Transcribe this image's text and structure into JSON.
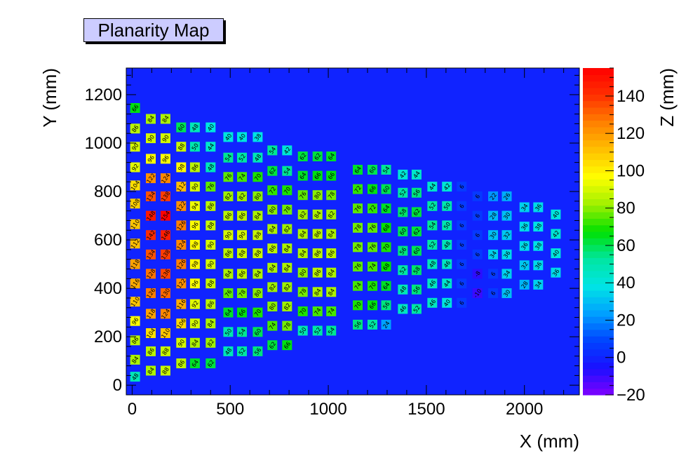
{
  "title": "Planarity Map",
  "chart_data": {
    "type": "heatmap",
    "title": "Planarity Map",
    "xlabel": "X (mm)",
    "ylabel": "Y (mm)",
    "zlabel": "Z (mm)",
    "xlim": [
      -30,
      2280
    ],
    "ylim": [
      -40,
      1310
    ],
    "zlim": [
      -20,
      155
    ],
    "x_ticks": [
      0,
      500,
      1000,
      1500,
      2000
    ],
    "y_ticks": [
      0,
      200,
      400,
      600,
      800,
      1000,
      1200
    ],
    "z_ticks": [
      -20,
      0,
      20,
      40,
      60,
      80,
      100,
      120,
      140
    ],
    "background_z": 0,
    "colormap": [
      "#8000ff",
      "#1a10ff",
      "#0044ff",
      "#00a0ff",
      "#00e5e5",
      "#00e6a0",
      "#00e000",
      "#a0f000",
      "#ffff00",
      "#ffc000",
      "#ff8000",
      "#ff3000",
      "#ff0000"
    ],
    "columns": [
      {
        "x": 15,
        "y": [
          35,
          105,
          185,
          265,
          345,
          420,
          500,
          585,
          665,
          750,
          825,
          900,
          985,
          1060,
          1145
        ],
        "z": [
          48,
          84,
          86,
          96,
          110,
          116,
          118,
          112,
          110,
          108,
          104,
          92,
          90,
          86,
          66
        ]
      },
      {
        "x": 95,
        "y": [
          60,
          140,
          215,
          295,
          380,
          460,
          540,
          620,
          700,
          780,
          855,
          935,
          1020,
          1100
        ],
        "z": [
          84,
          86,
          104,
          118,
          126,
          128,
          134,
          142,
          148,
          134,
          122,
          96,
          90,
          84
        ]
      },
      {
        "x": 170,
        "y": [
          60,
          140,
          215,
          295,
          380,
          460,
          540,
          620,
          700,
          780,
          855,
          935,
          1020,
          1100
        ],
        "z": [
          88,
          88,
          110,
          124,
          130,
          136,
          138,
          146,
          154,
          138,
          124,
          96,
          90,
          84
        ]
      },
      {
        "x": 250,
        "y": [
          90,
          175,
          255,
          335,
          420,
          500,
          580,
          660,
          740,
          820,
          900,
          985,
          1065
        ],
        "z": [
          86,
          90,
          106,
          116,
          122,
          126,
          124,
          126,
          122,
          112,
          98,
          88,
          60
        ]
      },
      {
        "x": 320,
        "y": [
          90,
          175,
          255,
          335,
          420,
          500,
          580,
          660,
          740,
          820,
          900,
          985,
          1065
        ],
        "z": [
          64,
          84,
          90,
          92,
          96,
          98,
          98,
          96,
          94,
          90,
          86,
          50,
          48
        ]
      },
      {
        "x": 400,
        "y": [
          90,
          175,
          255,
          335,
          420,
          500,
          580,
          660,
          740,
          820,
          900,
          985,
          1065
        ],
        "z": [
          62,
          82,
          84,
          86,
          88,
          90,
          90,
          88,
          86,
          76,
          48,
          44,
          40
        ]
      },
      {
        "x": 490,
        "y": [
          140,
          220,
          300,
          380,
          460,
          545,
          620,
          700,
          780,
          860,
          940,
          1025
        ],
        "z": [
          48,
          50,
          64,
          76,
          84,
          86,
          90,
          86,
          82,
          76,
          54,
          40
        ]
      },
      {
        "x": 560,
        "y": [
          140,
          220,
          300,
          380,
          460,
          545,
          620,
          700,
          780,
          860,
          940,
          1025
        ],
        "z": [
          52,
          54,
          66,
          78,
          86,
          88,
          90,
          86,
          82,
          74,
          52,
          40
        ]
      },
      {
        "x": 640,
        "y": [
          140,
          220,
          300,
          380,
          460,
          545,
          620,
          700,
          780,
          860,
          940,
          1025
        ],
        "z": [
          56,
          60,
          70,
          80,
          84,
          88,
          88,
          84,
          80,
          70,
          48,
          38
        ]
      },
      {
        "x": 715,
        "y": [
          165,
          245,
          325,
          405,
          485,
          565,
          645,
          725,
          805,
          885,
          970
        ],
        "z": [
          62,
          74,
          80,
          82,
          84,
          86,
          84,
          80,
          72,
          62,
          54
        ]
      },
      {
        "x": 790,
        "y": [
          165,
          245,
          325,
          405,
          485,
          565,
          645,
          725,
          805,
          885,
          970
        ],
        "z": [
          66,
          78,
          82,
          82,
          84,
          84,
          82,
          78,
          70,
          54,
          42
        ]
      },
      {
        "x": 870,
        "y": [
          225,
          305,
          385,
          465,
          545,
          625,
          705,
          785,
          865,
          945
        ],
        "z": [
          50,
          70,
          78,
          80,
          84,
          84,
          82,
          76,
          64,
          62
        ]
      },
      {
        "x": 945,
        "y": [
          225,
          305,
          385,
          465,
          545,
          625,
          705,
          785,
          865,
          945
        ],
        "z": [
          52,
          74,
          84,
          86,
          86,
          86,
          84,
          80,
          66,
          62
        ]
      },
      {
        "x": 1015,
        "y": [
          225,
          305,
          385,
          465,
          545,
          625,
          705,
          785,
          865,
          945
        ],
        "z": [
          54,
          74,
          84,
          84,
          86,
          84,
          82,
          78,
          66,
          64
        ]
      },
      {
        "x": 1150,
        "y": [
          250,
          330,
          410,
          490,
          570,
          650,
          730,
          810,
          890
        ],
        "z": [
          56,
          70,
          74,
          76,
          78,
          78,
          76,
          72,
          64
        ]
      },
      {
        "x": 1225,
        "y": [
          250,
          330,
          410,
          490,
          570,
          650,
          730,
          810,
          890
        ],
        "z": [
          52,
          66,
          70,
          74,
          76,
          76,
          72,
          66,
          60
        ]
      },
      {
        "x": 1295,
        "y": [
          250,
          330,
          410,
          490,
          570,
          650,
          730,
          810,
          890
        ],
        "z": [
          24,
          56,
          64,
          68,
          70,
          68,
          64,
          60,
          54
        ]
      },
      {
        "x": 1380,
        "y": [
          315,
          395,
          475,
          555,
          635,
          715,
          795,
          870
        ],
        "z": [
          46,
          48,
          52,
          56,
          60,
          58,
          52,
          42
        ]
      },
      {
        "x": 1450,
        "y": [
          315,
          395,
          475,
          555,
          635,
          715,
          795,
          870
        ],
        "z": [
          52,
          56,
          58,
          60,
          62,
          62,
          56,
          44
        ]
      },
      {
        "x": 1530,
        "y": [
          340,
          420,
          500,
          580,
          660,
          740,
          820
        ],
        "z": [
          46,
          46,
          48,
          52,
          54,
          52,
          44
        ]
      },
      {
        "x": 1605,
        "y": [
          340,
          420,
          500,
          580,
          660,
          740,
          820
        ],
        "z": [
          40,
          44,
          46,
          48,
          50,
          50,
          42
        ]
      },
      {
        "x": 1680,
        "y": [
          340,
          420,
          500,
          580,
          660,
          740,
          820
        ],
        "z": [
          6,
          6,
          6,
          6,
          6,
          6,
          6
        ]
      },
      {
        "x": 1760,
        "y": [
          380,
          460,
          540,
          620,
          700,
          780
        ],
        "z": [
          -10,
          -8,
          6,
          6,
          6,
          6
        ]
      },
      {
        "x": 1840,
        "y": [
          380,
          460,
          540,
          620,
          700,
          780
        ],
        "z": [
          6,
          6,
          34,
          30,
          28,
          22
        ]
      },
      {
        "x": 1910,
        "y": [
          380,
          460,
          540,
          620,
          700,
          780
        ],
        "z": [
          30,
          34,
          36,
          32,
          30,
          26
        ]
      },
      {
        "x": 2000,
        "y": [
          415,
          495,
          575,
          655,
          735
        ],
        "z": [
          28,
          32,
          36,
          36,
          34
        ]
      },
      {
        "x": 2070,
        "y": [
          415,
          495,
          575,
          655,
          735
        ],
        "z": [
          34,
          36,
          38,
          38,
          36
        ]
      },
      {
        "x": 2160,
        "y": [
          465,
          545,
          625,
          705
        ],
        "z": [
          36,
          40,
          42,
          40
        ]
      }
    ]
  }
}
